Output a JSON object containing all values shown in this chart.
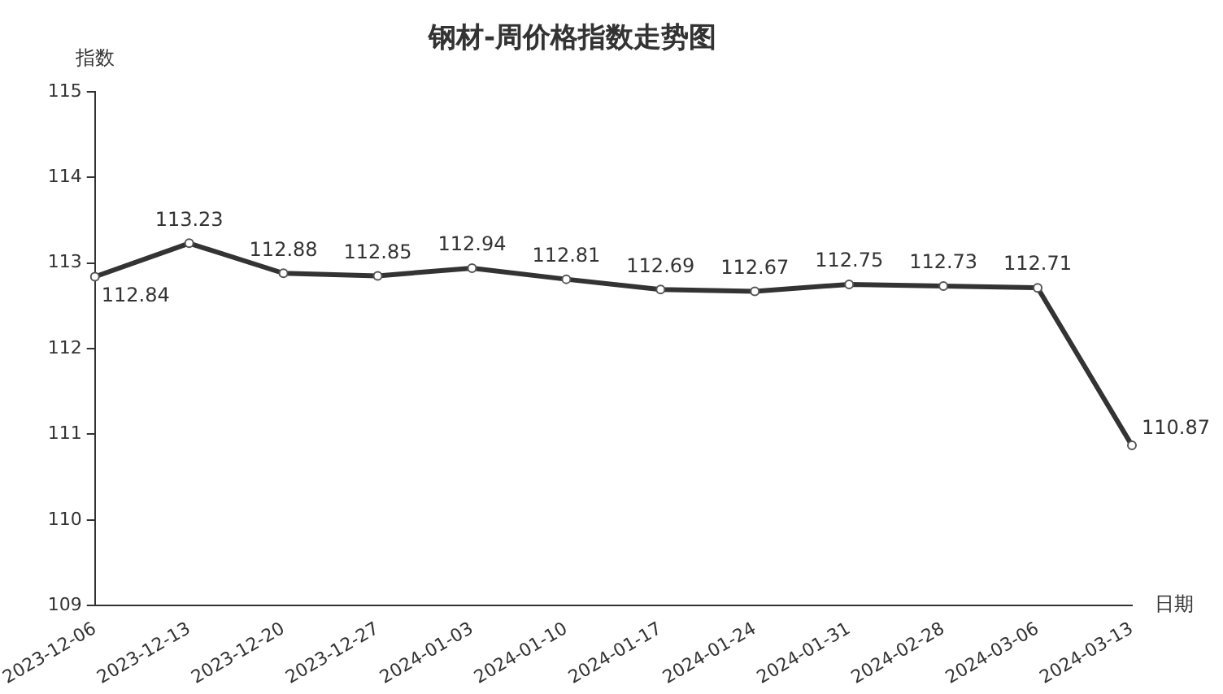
{
  "chart_data": {
    "type": "line",
    "title": "钢材-周价格指数走势图",
    "xlabel": "日期",
    "ylabel": "指数",
    "categories": [
      "2023-12-06",
      "2023-12-13",
      "2023-12-20",
      "2023-12-27",
      "2024-01-03",
      "2024-01-10",
      "2024-01-17",
      "2024-01-24",
      "2024-01-31",
      "2024-02-28",
      "2024-03-06",
      "2024-03-13"
    ],
    "series": [
      {
        "color": "#333333",
        "values": [
          112.84,
          113.23,
          112.88,
          112.85,
          112.94,
          112.81,
          112.69,
          112.67,
          112.75,
          112.73,
          112.71,
          110.87
        ]
      }
    ],
    "ylim": [
      109,
      115
    ],
    "yticks": [
      109,
      110,
      111,
      112,
      113,
      114,
      115
    ],
    "grid": false,
    "legend": false,
    "marker": "circle",
    "line_style": "solid",
    "data_labels": true
  }
}
